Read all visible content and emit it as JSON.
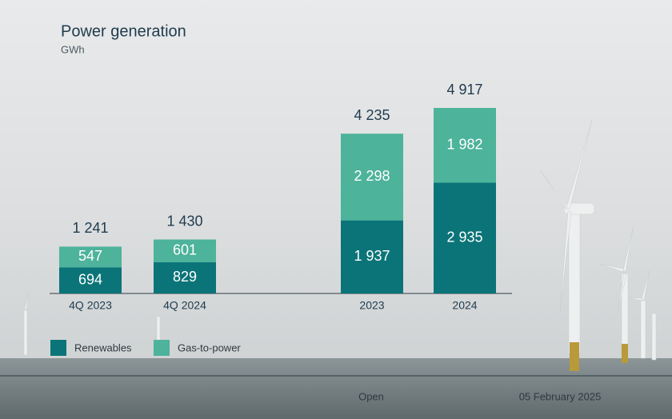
{
  "chart_data": {
    "type": "stacked-bar",
    "title": "Power generation",
    "subtitle": "GWh",
    "categories": [
      "4Q 2023",
      "4Q 2024",
      "2023",
      "2024"
    ],
    "series": [
      {
        "name": "Renewables",
        "color": "#0b7478",
        "values": [
          694,
          829,
          1937,
          2935
        ],
        "value_labels": [
          "694",
          "829",
          "1 937",
          "2 935"
        ]
      },
      {
        "name": "Gas-to-power",
        "color": "#4db39b",
        "values": [
          547,
          601,
          2298,
          1982
        ],
        "value_labels": [
          "547",
          "601",
          "2 298",
          "1 982"
        ]
      }
    ],
    "totals": [
      1241,
      1430,
      4235,
      4917
    ],
    "total_labels": [
      "1 241",
      "1 430",
      "4 235",
      "4 917"
    ]
  },
  "footer": {
    "classification": "Open",
    "date": "05 February 2025"
  }
}
